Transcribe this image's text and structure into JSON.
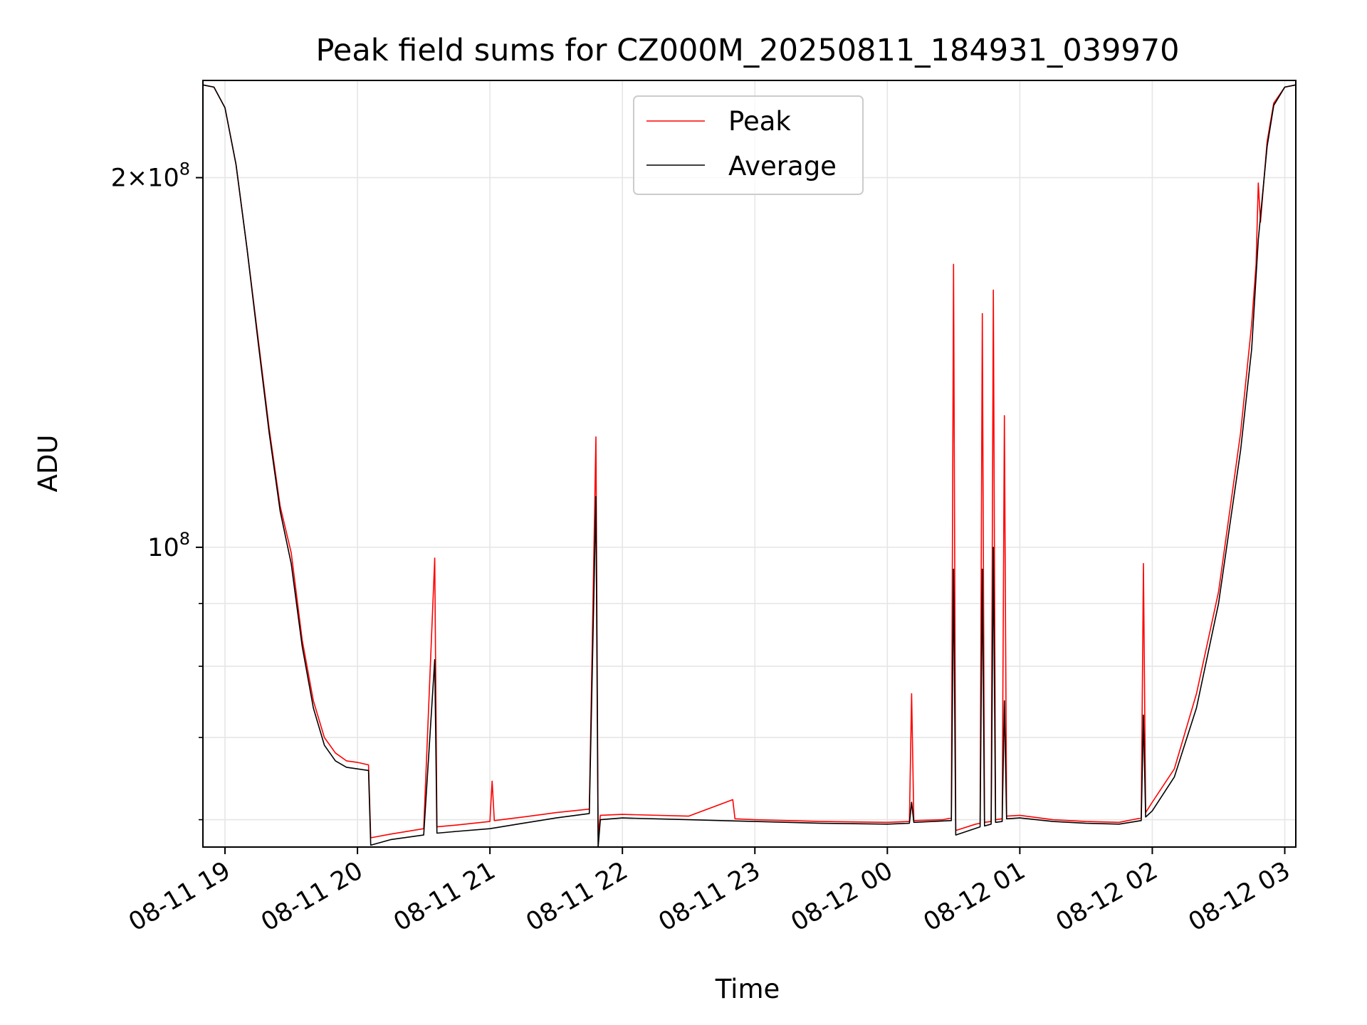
{
  "chart_data": {
    "type": "line",
    "title": "Peak field sums for CZ000M_20250811_184931_039970",
    "xlabel": "Time",
    "ylabel": "ADU",
    "yscale": "log",
    "xlim": [
      "2025-08-11 18:50",
      "2025-08-12 03:05"
    ],
    "ylim": [
      57000000,
      240000000
    ],
    "grid": true,
    "legend_position": "top-center",
    "x_ticks": [
      {
        "at": "2025-08-11 19:00",
        "label": "08-11 19"
      },
      {
        "at": "2025-08-11 20:00",
        "label": "08-11 20"
      },
      {
        "at": "2025-08-11 21:00",
        "label": "08-11 21"
      },
      {
        "at": "2025-08-11 22:00",
        "label": "08-11 22"
      },
      {
        "at": "2025-08-11 23:00",
        "label": "08-11 23"
      },
      {
        "at": "2025-08-12 00:00",
        "label": "08-12 00"
      },
      {
        "at": "2025-08-12 01:00",
        "label": "08-12 01"
      },
      {
        "at": "2025-08-12 02:00",
        "label": "08-12 02"
      },
      {
        "at": "2025-08-12 03:00",
        "label": "08-12 03"
      }
    ],
    "y_major_ticks": [
      {
        "value": 100000000,
        "base": "10",
        "exp": "8",
        "mant": ""
      },
      {
        "value": 200000000,
        "base": "10",
        "exp": "8",
        "mant": "2"
      }
    ],
    "y_minor_ticks": [
      60000000,
      70000000,
      80000000,
      90000000
    ],
    "series": [
      {
        "name": "Peak",
        "color": "#ff0000",
        "points": [
          [
            "2025-08-11 18:50",
            238000000
          ],
          [
            "2025-08-11 18:55",
            237000000
          ],
          [
            "2025-08-11 19:00",
            228000000
          ],
          [
            "2025-08-11 19:05",
            205000000
          ],
          [
            "2025-08-11 19:10",
            175000000
          ],
          [
            "2025-08-11 19:15",
            148000000
          ],
          [
            "2025-08-11 19:20",
            125000000
          ],
          [
            "2025-08-11 19:25",
            108000000
          ],
          [
            "2025-08-11 19:30",
            99000000
          ],
          [
            "2025-08-11 19:35",
            84000000
          ],
          [
            "2025-08-11 19:40",
            75000000
          ],
          [
            "2025-08-11 19:45",
            70000000
          ],
          [
            "2025-08-11 19:50",
            68000000
          ],
          [
            "2025-08-11 19:55",
            67000000
          ],
          [
            "2025-08-11 20:00",
            66800000
          ],
          [
            "2025-08-11 20:05",
            66500000
          ],
          [
            "2025-08-11 20:06",
            58000000
          ],
          [
            "2025-08-11 20:15",
            58400000
          ],
          [
            "2025-08-11 20:30",
            59000000
          ],
          [
            "2025-08-11 20:35",
            98000000
          ],
          [
            "2025-08-11 20:36",
            59200000
          ],
          [
            "2025-08-11 20:45",
            59400000
          ],
          [
            "2025-08-11 21:00",
            59800000
          ],
          [
            "2025-08-11 21:01",
            64500000
          ],
          [
            "2025-08-11 21:02",
            59900000
          ],
          [
            "2025-08-11 21:15",
            60300000
          ],
          [
            "2025-08-11 21:30",
            60800000
          ],
          [
            "2025-08-11 21:45",
            61200000
          ],
          [
            "2025-08-11 21:48",
            123000000
          ],
          [
            "2025-08-11 21:49",
            58200000
          ],
          [
            "2025-08-11 21:50",
            60500000
          ],
          [
            "2025-08-11 22:00",
            60600000
          ],
          [
            "2025-08-11 22:30",
            60400000
          ],
          [
            "2025-08-11 22:50",
            62300000
          ],
          [
            "2025-08-11 22:51",
            60100000
          ],
          [
            "2025-08-11 23:00",
            60000000
          ],
          [
            "2025-08-11 23:30",
            59800000
          ],
          [
            "2025-08-12 00:00",
            59700000
          ],
          [
            "2025-08-12 00:10",
            59800000
          ],
          [
            "2025-08-12 00:11",
            76000000
          ],
          [
            "2025-08-12 00:12",
            59900000
          ],
          [
            "2025-08-12 00:25",
            60000000
          ],
          [
            "2025-08-12 00:29",
            60200000
          ],
          [
            "2025-08-12 00:30",
            170000000
          ],
          [
            "2025-08-12 00:31",
            58800000
          ],
          [
            "2025-08-12 00:40",
            59500000
          ],
          [
            "2025-08-12 00:42",
            59600000
          ],
          [
            "2025-08-12 00:43",
            155000000
          ],
          [
            "2025-08-12 00:44",
            59700000
          ],
          [
            "2025-08-12 00:47",
            59800000
          ],
          [
            "2025-08-12 00:48",
            162000000
          ],
          [
            "2025-08-12 00:49",
            60000000
          ],
          [
            "2025-08-12 00:52",
            60100000
          ],
          [
            "2025-08-12 00:53",
            128000000
          ],
          [
            "2025-08-12 00:54",
            60400000
          ],
          [
            "2025-08-12 01:00",
            60500000
          ],
          [
            "2025-08-12 01:15",
            60000000
          ],
          [
            "2025-08-12 01:30",
            59800000
          ],
          [
            "2025-08-12 01:45",
            59700000
          ],
          [
            "2025-08-12 01:55",
            60200000
          ],
          [
            "2025-08-12 01:56",
            97000000
          ],
          [
            "2025-08-12 01:57",
            60800000
          ],
          [
            "2025-08-12 02:00",
            62000000
          ],
          [
            "2025-08-12 02:10",
            66000000
          ],
          [
            "2025-08-12 02:20",
            76000000
          ],
          [
            "2025-08-12 02:30",
            92000000
          ],
          [
            "2025-08-12 02:40",
            124000000
          ],
          [
            "2025-08-12 02:45",
            152000000
          ],
          [
            "2025-08-12 02:47",
            170000000
          ],
          [
            "2025-08-12 02:48",
            198000000
          ],
          [
            "2025-08-12 02:49",
            184000000
          ],
          [
            "2025-08-12 02:52",
            214000000
          ],
          [
            "2025-08-12 02:55",
            230000000
          ],
          [
            "2025-08-12 03:00",
            237000000
          ],
          [
            "2025-08-12 03:05",
            238000000
          ]
        ]
      },
      {
        "name": "Average",
        "color": "#000000",
        "points": [
          [
            "2025-08-11 18:50",
            238000000
          ],
          [
            "2025-08-11 18:55",
            237000000
          ],
          [
            "2025-08-11 19:00",
            228000000
          ],
          [
            "2025-08-11 19:05",
            205000000
          ],
          [
            "2025-08-11 19:10",
            175000000
          ],
          [
            "2025-08-11 19:15",
            147000000
          ],
          [
            "2025-08-11 19:20",
            124000000
          ],
          [
            "2025-08-11 19:25",
            107000000
          ],
          [
            "2025-08-11 19:30",
            97000000
          ],
          [
            "2025-08-11 19:35",
            83000000
          ],
          [
            "2025-08-11 19:40",
            74000000
          ],
          [
            "2025-08-11 19:45",
            69000000
          ],
          [
            "2025-08-11 19:50",
            67000000
          ],
          [
            "2025-08-11 19:55",
            66200000
          ],
          [
            "2025-08-11 20:00",
            66000000
          ],
          [
            "2025-08-11 20:05",
            65800000
          ],
          [
            "2025-08-11 20:06",
            57200000
          ],
          [
            "2025-08-11 20:15",
            57800000
          ],
          [
            "2025-08-11 20:30",
            58300000
          ],
          [
            "2025-08-11 20:35",
            81000000
          ],
          [
            "2025-08-11 20:36",
            58500000
          ],
          [
            "2025-08-11 20:45",
            58700000
          ],
          [
            "2025-08-11 21:00",
            59000000
          ],
          [
            "2025-08-11 21:15",
            59600000
          ],
          [
            "2025-08-11 21:30",
            60200000
          ],
          [
            "2025-08-11 21:45",
            60700000
          ],
          [
            "2025-08-11 21:48",
            110000000
          ],
          [
            "2025-08-11 21:49",
            57000000
          ],
          [
            "2025-08-11 21:50",
            60000000
          ],
          [
            "2025-08-11 22:00",
            60200000
          ],
          [
            "2025-08-11 22:30",
            60000000
          ],
          [
            "2025-08-11 23:00",
            59800000
          ],
          [
            "2025-08-11 23:30",
            59600000
          ],
          [
            "2025-08-12 00:00",
            59500000
          ],
          [
            "2025-08-12 00:10",
            59600000
          ],
          [
            "2025-08-12 00:11",
            62000000
          ],
          [
            "2025-08-12 00:12",
            59700000
          ],
          [
            "2025-08-12 00:29",
            59900000
          ],
          [
            "2025-08-12 00:30",
            96000000
          ],
          [
            "2025-08-12 00:31",
            58300000
          ],
          [
            "2025-08-12 00:42",
            59200000
          ],
          [
            "2025-08-12 00:43",
            96000000
          ],
          [
            "2025-08-12 00:44",
            59300000
          ],
          [
            "2025-08-12 00:47",
            59500000
          ],
          [
            "2025-08-12 00:48",
            100000000
          ],
          [
            "2025-08-12 00:49",
            59700000
          ],
          [
            "2025-08-12 00:52",
            59800000
          ],
          [
            "2025-08-12 00:53",
            75000000
          ],
          [
            "2025-08-12 00:54",
            60100000
          ],
          [
            "2025-08-12 01:00",
            60200000
          ],
          [
            "2025-08-12 01:15",
            59800000
          ],
          [
            "2025-08-12 01:30",
            59600000
          ],
          [
            "2025-08-12 01:45",
            59500000
          ],
          [
            "2025-08-12 01:55",
            59900000
          ],
          [
            "2025-08-12 01:56",
            73000000
          ],
          [
            "2025-08-12 01:57",
            60300000
          ],
          [
            "2025-08-12 02:00",
            61000000
          ],
          [
            "2025-08-12 02:10",
            65000000
          ],
          [
            "2025-08-12 02:20",
            74000000
          ],
          [
            "2025-08-12 02:30",
            90000000
          ],
          [
            "2025-08-12 02:40",
            120000000
          ],
          [
            "2025-08-12 02:45",
            145000000
          ],
          [
            "2025-08-12 02:48",
            178000000
          ],
          [
            "2025-08-12 02:52",
            212000000
          ],
          [
            "2025-08-12 02:55",
            229000000
          ],
          [
            "2025-08-12 03:00",
            237000000
          ],
          [
            "2025-08-12 03:05",
            238000000
          ]
        ]
      }
    ]
  }
}
